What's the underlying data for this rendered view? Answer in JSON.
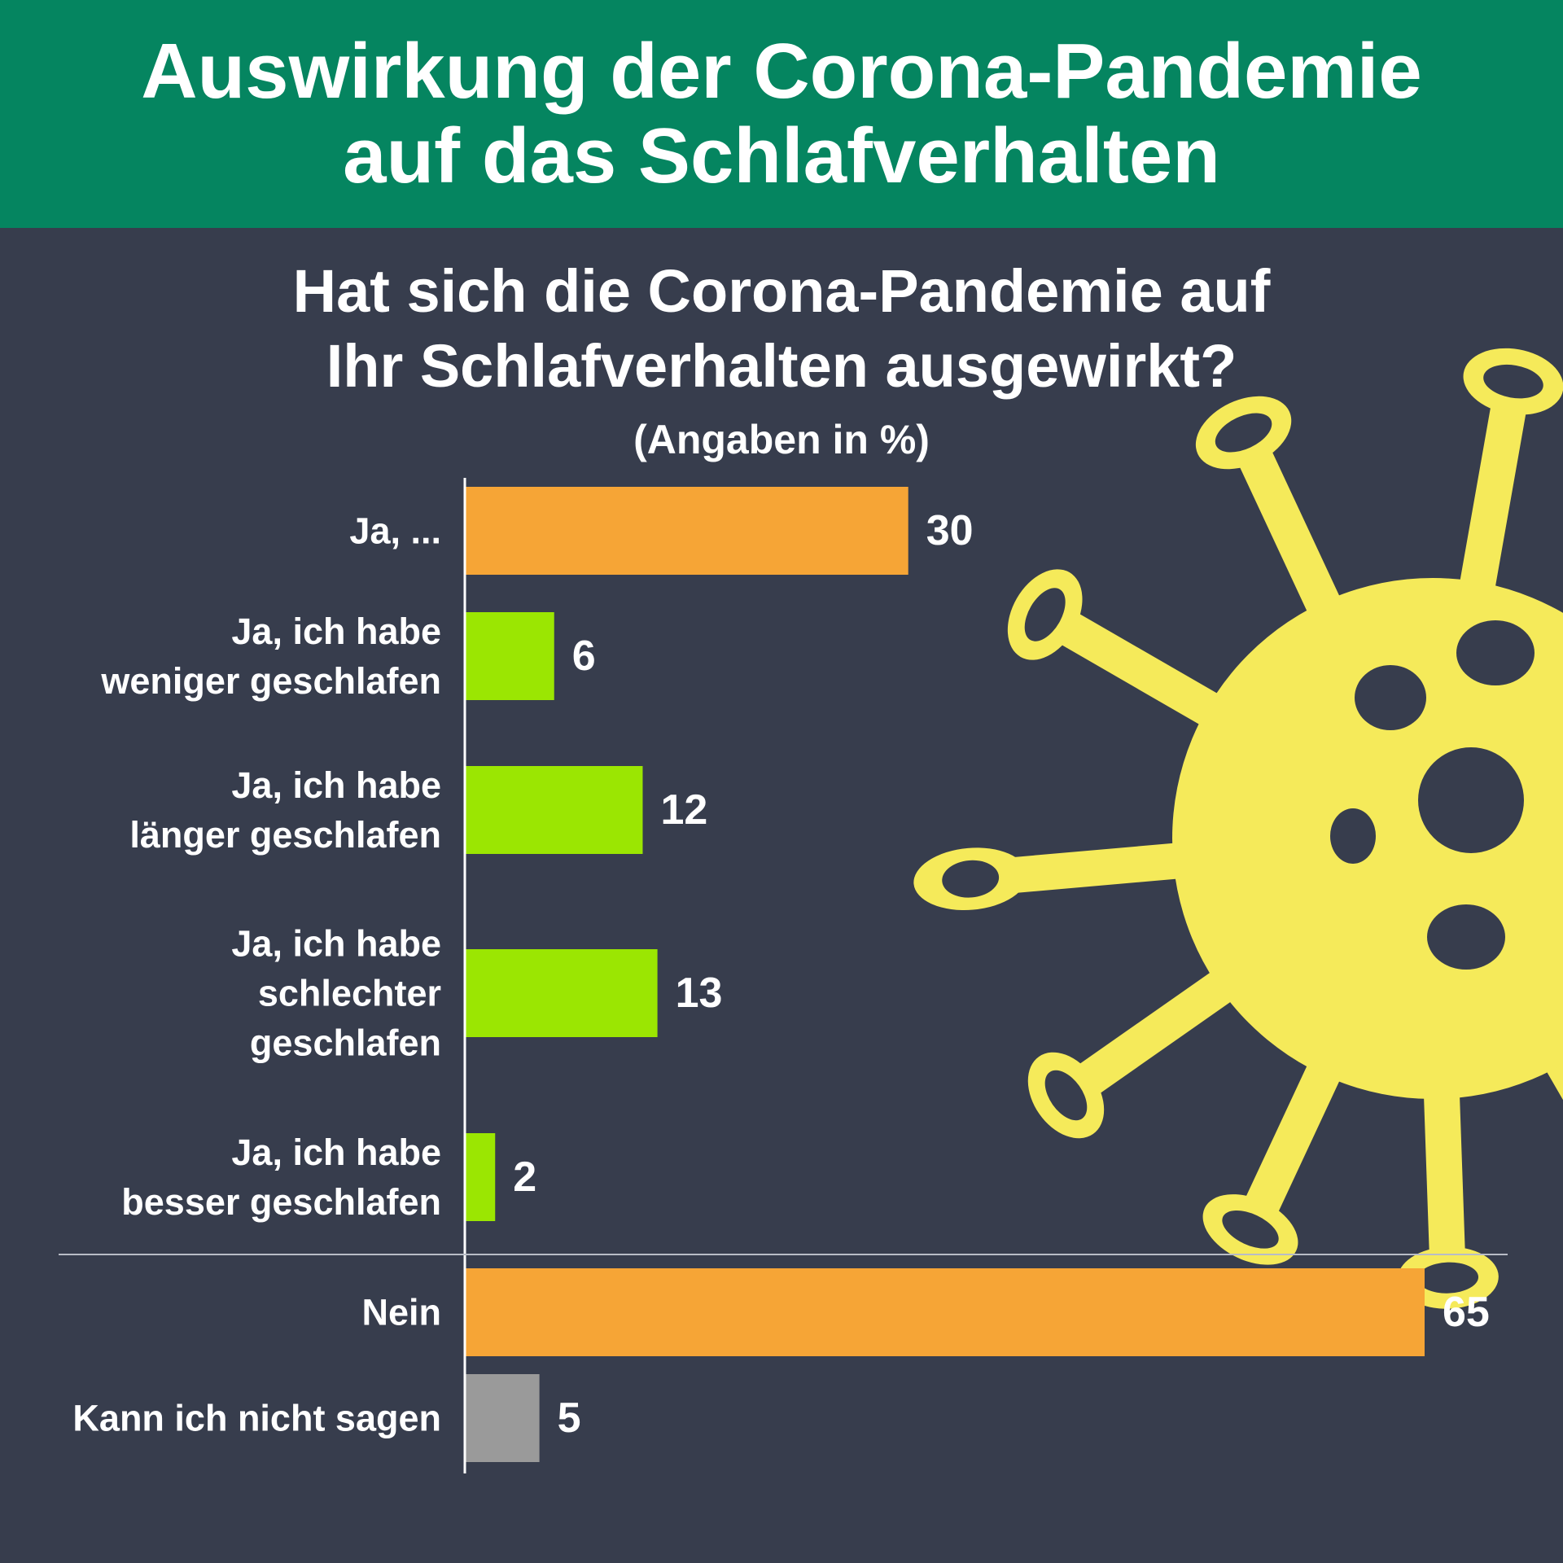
{
  "title": [
    "Auswirkung der Corona-Pandemie",
    "auf das Schlafverhalten"
  ],
  "question": [
    "Hat sich die Corona-Pandemie auf",
    "Ihr Schlafverhalten ausgewirkt?"
  ],
  "unit_note": "(Angaben in %)",
  "colors": {
    "header_bg": "#058560",
    "background": "#373d4d",
    "orange": "#f6a536",
    "green": "#9be602",
    "gray": "#9a9a9a",
    "virus": "#f5ea5a"
  },
  "decoration": {
    "icon": "coronavirus-icon"
  },
  "chart_data": {
    "type": "bar",
    "orientation": "horizontal",
    "title": "Hat sich die Corona-Pandemie auf Ihr Schlafverhalten ausgewirkt?",
    "unit": "%",
    "categories": [
      [
        "Ja, ..."
      ],
      [
        "Ja, ich habe",
        "weniger geschlafen"
      ],
      [
        "Ja, ich habe",
        "länger geschlafen"
      ],
      [
        "Ja, ich habe",
        "schlechter",
        "geschlafen"
      ],
      [
        "Ja, ich habe",
        "besser geschlafen"
      ],
      [
        "Nein"
      ],
      [
        "Kann ich nicht sagen"
      ]
    ],
    "values": [
      30,
      6,
      12,
      13,
      2,
      65,
      5
    ],
    "bar_colors": [
      "orange",
      "green",
      "green",
      "green",
      "green",
      "orange",
      "gray"
    ],
    "separator_before_index": 5,
    "xlim": [
      0,
      65
    ],
    "grid": false,
    "legend": "none"
  }
}
